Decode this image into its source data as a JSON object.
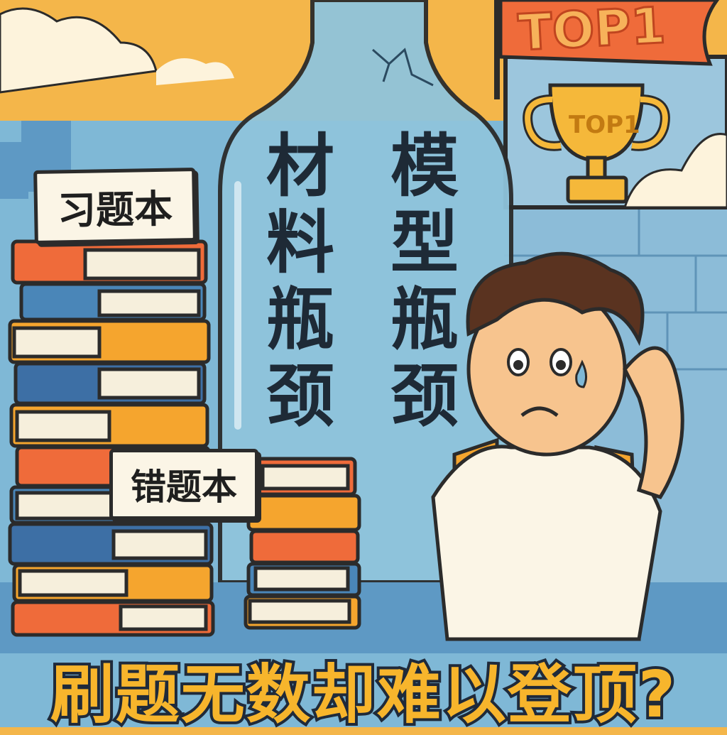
{
  "books": {
    "top_label": "习题本",
    "bottom_label": "错题本"
  },
  "bottle": {
    "left_text": "材料瓶颈",
    "right_text": "模型瓶颈"
  },
  "flag": {
    "text": "TOP1"
  },
  "trophy": {
    "text": "TOP1"
  },
  "headline": "刷题无数却难以登顶?",
  "colors": {
    "sky": "#7fb8d6",
    "sunset": "#f4b64a",
    "bottle": "#8fc4dc",
    "flag": "#ef6b3a",
    "trophy": "#f5b83a",
    "headline_fill": "#f7b52c",
    "headline_stroke": "#1f2a3a"
  }
}
